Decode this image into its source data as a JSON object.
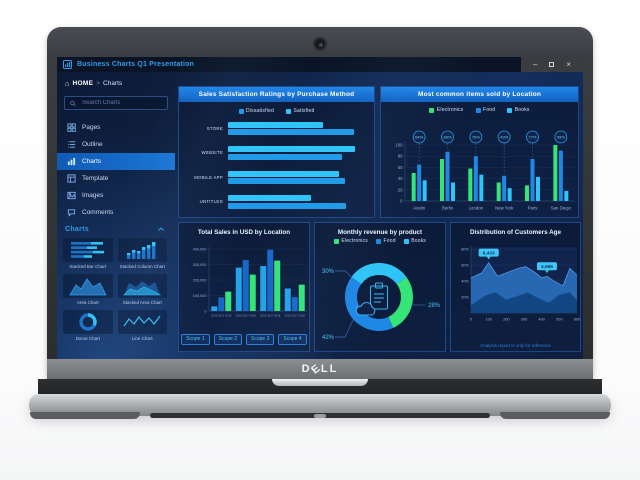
{
  "window": {
    "title": "Business Charts Q1 Presentation",
    "controls": [
      {
        "icon": "minimize-icon",
        "glyph": "–"
      },
      {
        "icon": "maximize-icon",
        "glyph": "□"
      },
      {
        "icon": "close-icon",
        "glyph": "×"
      }
    ]
  },
  "sidebar": {
    "breadcrumb": {
      "home": "HOME",
      "sep": ">",
      "current": "Charts"
    },
    "search_placeholder": "Search Charts",
    "nav": [
      {
        "label": "Pages",
        "icon": "pages-icon",
        "active": false
      },
      {
        "label": "Outline",
        "icon": "outline-icon",
        "active": false
      },
      {
        "label": "Charts",
        "icon": "charts-icon",
        "active": true
      },
      {
        "label": "Template",
        "icon": "template-icon",
        "active": false
      },
      {
        "label": "Images",
        "icon": "images-icon",
        "active": false
      },
      {
        "label": "Comments",
        "icon": "comments-icon",
        "active": false
      }
    ],
    "charts_panel": {
      "title": "Charts",
      "items": [
        {
          "label": "Stacked Bar Chart",
          "icon": "stacked-bar-chart-icon"
        },
        {
          "label": "Stacked Column Chart",
          "icon": "stacked-column-chart-icon"
        },
        {
          "label": "Area Chart",
          "icon": "area-chart-icon"
        },
        {
          "label": "Stacked Area Chart",
          "icon": "stacked-area-chart-icon"
        },
        {
          "label": "Donut Chart",
          "icon": "donut-chart-icon"
        },
        {
          "label": "Line Chart",
          "icon": "line-chart-icon"
        }
      ]
    }
  },
  "colors": {
    "accent_blue": "#2f9ce8",
    "green": "#35e578",
    "blue": "#1e88e5",
    "cyan": "#2fc4f7",
    "panel_border": "#2d69c3",
    "background_navy": "#0d1b38"
  },
  "chart_data": [
    {
      "type": "bar",
      "orientation": "horizontal",
      "title": "Sales Satisfaction Ratings by Purchase Method",
      "legend": [
        {
          "label": "Dissatisfied",
          "color": "#1f9ae8"
        },
        {
          "label": "Satisfied",
          "color": "#2fc4f7"
        }
      ],
      "categories": [
        "STORE",
        "WEBSITE",
        "MOBILE APP",
        "UNTITLED"
      ],
      "series": [
        {
          "name": "Satisfied",
          "color": "#2fc4f7",
          "values": [
            73,
            98,
            85,
            64
          ]
        },
        {
          "name": "Dissatisfied",
          "color": "#1f9ae8",
          "values": [
            97,
            88,
            90,
            91
          ]
        }
      ],
      "xlim": [
        0,
        100
      ]
    },
    {
      "type": "bar",
      "title": "Most common items sold by Location",
      "legend": [
        {
          "label": "Electronics",
          "color": "#35e578"
        },
        {
          "label": "Food",
          "color": "#1e88e5"
        },
        {
          "label": "Books",
          "color": "#2fc4f7"
        }
      ],
      "categories": [
        "Austin",
        "Berlin",
        "London",
        "New York",
        "Paris",
        "San Diego"
      ],
      "series": [
        {
          "name": "Electronics",
          "color": "#35e578",
          "values": [
            50,
            75,
            58,
            33,
            28,
            100
          ]
        },
        {
          "name": "Food",
          "color": "#1e88e5",
          "values": [
            65,
            88,
            80,
            45,
            75,
            90
          ]
        },
        {
          "name": "Books",
          "color": "#2fc4f7",
          "values": [
            37,
            33,
            47,
            23,
            43,
            18
          ]
        }
      ],
      "badges": [
        "64%",
        "89%",
        "79%",
        "43%",
        "77%",
        "99%"
      ],
      "ylim": [
        0,
        100
      ],
      "yticks": [
        0,
        20,
        40,
        60,
        80,
        100
      ]
    },
    {
      "type": "bar",
      "title": "Total Sales in USD by Location",
      "yticks": [
        "0",
        "100,000",
        "200,000",
        "300,000",
        "400,000"
      ],
      "ylim": [
        0,
        400000
      ],
      "group_ticks": [
        "2016",
        "2017",
        "2018"
      ],
      "categories": [
        "Scope 1",
        "Scope 2",
        "Scope 3",
        "Scope 4"
      ],
      "series": [
        {
          "name": "2016",
          "color": "#24a3e8",
          "values": [
            30000,
            280000,
            290000,
            145000
          ]
        },
        {
          "name": "2017",
          "color": "#1668c8",
          "values": [
            88000,
            330000,
            395000,
            90000
          ]
        },
        {
          "name": "2018",
          "color": "#35e578",
          "values": [
            125000,
            235000,
            325000,
            170000
          ]
        }
      ]
    },
    {
      "type": "pie",
      "title": "Monthly revenue by product",
      "legend": [
        {
          "label": "Electronics",
          "color": "#35e578"
        },
        {
          "label": "Food",
          "color": "#1e88e5"
        },
        {
          "label": "Books",
          "color": "#2fc4f7"
        }
      ],
      "slices": [
        {
          "label": "Books",
          "value": 30,
          "display": "30%",
          "color": "#2fc4f7"
        },
        {
          "label": "Electronics",
          "value": 28,
          "display": "28%",
          "color": "#35e578"
        },
        {
          "label": "Food",
          "value": 42,
          "display": "42%",
          "color": "#1e88e5"
        }
      ],
      "start_angle_deg": -54
    },
    {
      "type": "area",
      "title": "Distribution of Customers Age",
      "yticks": [
        "20%",
        "40%",
        "60%",
        "80%"
      ],
      "xticks": [
        "0",
        "100",
        "200",
        "300",
        "400",
        "500",
        "600"
      ],
      "xlim": [
        0,
        600
      ],
      "ylim": [
        0,
        85
      ],
      "series": [
        {
          "name": "upper",
          "color": "#2d74c4",
          "x": [
            0,
            60,
            100,
            150,
            210,
            270,
            310,
            360,
            400,
            430,
            470,
            520,
            560,
            600
          ],
          "values": [
            44,
            50,
            63,
            46,
            51,
            56,
            58,
            51,
            44,
            46,
            40,
            34,
            56,
            47
          ]
        },
        {
          "name": "lower",
          "color": "#10447f",
          "x": [
            0,
            80,
            140,
            200,
            260,
            320,
            380,
            440,
            500,
            560,
            600
          ],
          "values": [
            10,
            22,
            26,
            17,
            21,
            26,
            19,
            13,
            23,
            26,
            16
          ]
        }
      ],
      "tooltips": [
        {
          "label": "6,433",
          "x": 100,
          "y": 63
        },
        {
          "label": "4,566",
          "x": 430,
          "y": 46
        }
      ],
      "caption": "Analysis report is only for reference"
    }
  ],
  "laptop": {
    "brand": "DELL"
  }
}
